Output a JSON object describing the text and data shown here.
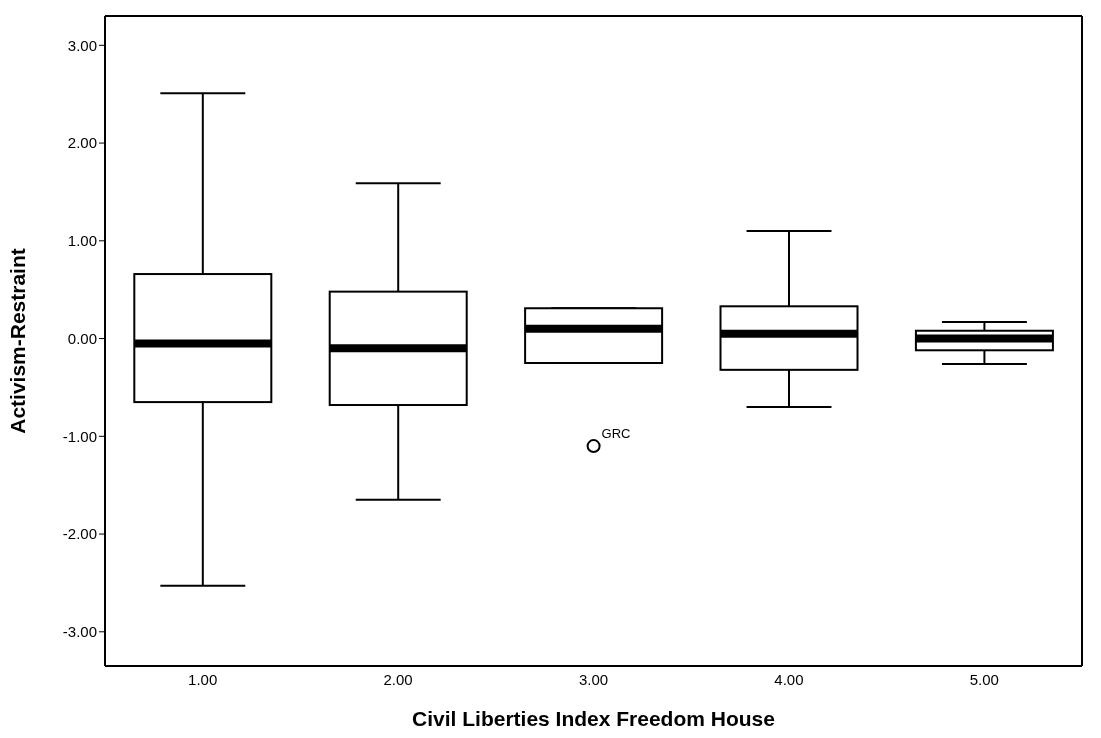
{
  "chart_data": {
    "type": "box",
    "categories": [
      "1.00",
      "2.00",
      "3.00",
      "4.00",
      "5.00"
    ],
    "boxes": [
      {
        "low": -2.53,
        "q1": -0.65,
        "median": -0.05,
        "q3": 0.66,
        "high": 2.51
      },
      {
        "low": -1.65,
        "q1": -0.68,
        "median": -0.1,
        "q3": 0.48,
        "high": 1.59
      },
      {
        "low": -0.25,
        "q1": -0.25,
        "median": 0.1,
        "q3": 0.31,
        "high": 0.31,
        "outliers": [
          -1.1
        ]
      },
      {
        "low": -0.7,
        "q1": -0.32,
        "median": 0.05,
        "q3": 0.33,
        "high": 1.1
      },
      {
        "low": -0.26,
        "q1": -0.12,
        "median": 0.0,
        "q3": 0.08,
        "high": 0.17
      }
    ],
    "color": "#ffffff",
    "xlabel": "Civil Liberties Index Freedom House",
    "ylabel": "Activism-Restraint",
    "ylim": [
      -3.35,
      3.3
    ],
    "yticks": [
      {
        "value": -3,
        "label": "-3.00"
      },
      {
        "value": -2,
        "label": "-2.00"
      },
      {
        "value": -1,
        "label": "-1.00"
      },
      {
        "value": 0,
        "label": "0.00"
      },
      {
        "value": 1,
        "label": "1.00"
      },
      {
        "value": 2,
        "label": "2.00"
      },
      {
        "value": 3,
        "label": "3.00"
      }
    ],
    "annotations": [
      "GRC"
    ],
    "grid": false
  }
}
